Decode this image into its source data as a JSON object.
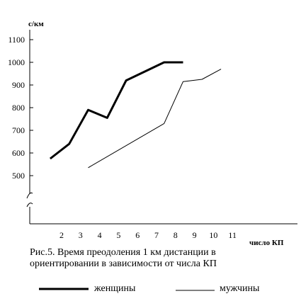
{
  "chart_data": {
    "type": "line",
    "ylabel": "с/км",
    "xlabel": "число КП",
    "y_ticks": [
      500,
      600,
      700,
      800,
      900,
      1000,
      1100
    ],
    "x_ticks": [
      2,
      3,
      4,
      5,
      6,
      7,
      8,
      9,
      10,
      11
    ],
    "ylim": [
      400,
      1150
    ],
    "xlim": [
      1,
      12
    ],
    "axis_break": true,
    "grid": false,
    "legend_position": "bottom",
    "series": [
      {
        "name": "женщины",
        "style": "thick",
        "color": "#000000",
        "points": [
          [
            1.4,
            575
          ],
          [
            2.4,
            640
          ],
          [
            3.4,
            790
          ],
          [
            4.4,
            755
          ],
          [
            5.4,
            920
          ],
          [
            7.4,
            1000
          ],
          [
            8.4,
            1000
          ]
        ]
      },
      {
        "name": "мужчины",
        "style": "thin",
        "color": "#000000",
        "points": [
          [
            3.4,
            535
          ],
          [
            7.4,
            730
          ],
          [
            8.4,
            915
          ],
          [
            9.4,
            925
          ],
          [
            10.4,
            970
          ]
        ]
      }
    ]
  },
  "caption_line1": "Рис.5. Время преодоления 1 км дистанции в",
  "caption_line2": "ориентировании в зависимости от числа КП"
}
